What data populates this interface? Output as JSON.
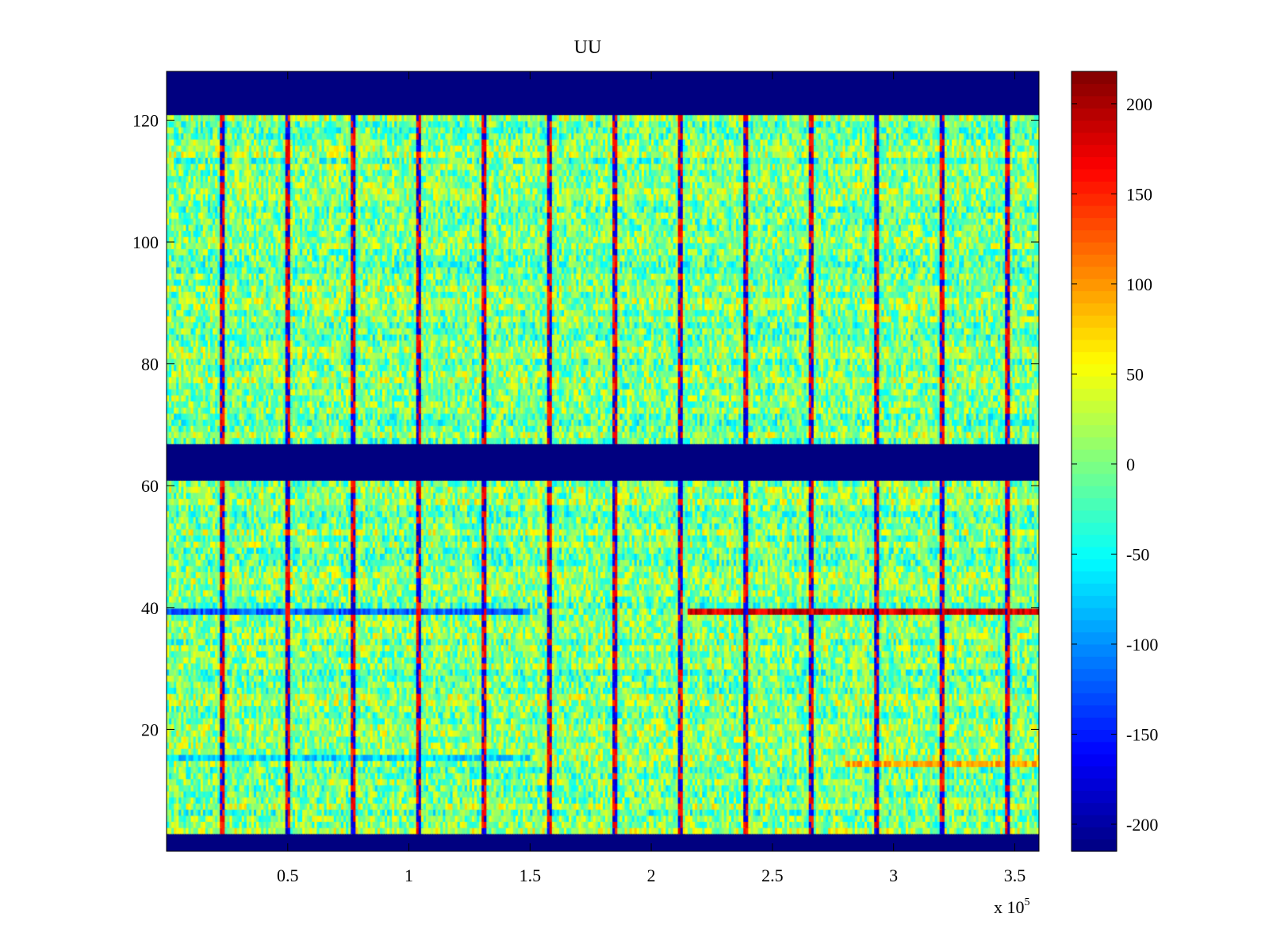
{
  "chart_data": {
    "type": "heatmap",
    "title": "UU",
    "colormap": "jet",
    "xlim": [
      0,
      360000
    ],
    "ylim": [
      0,
      128
    ],
    "x_ticks": [
      {
        "value": 50000,
        "label": "0.5"
      },
      {
        "value": 100000,
        "label": "1"
      },
      {
        "value": 150000,
        "label": "1.5"
      },
      {
        "value": 200000,
        "label": "2"
      },
      {
        "value": 250000,
        "label": "2.5"
      },
      {
        "value": 300000,
        "label": "3"
      },
      {
        "value": 350000,
        "label": "3.5"
      }
    ],
    "x_exponent": {
      "base": "x 10",
      "power": "5"
    },
    "y_ticks": [
      {
        "value": 20,
        "label": "20"
      },
      {
        "value": 40,
        "label": "40"
      },
      {
        "value": 60,
        "label": "60"
      },
      {
        "value": 80,
        "label": "80"
      },
      {
        "value": 100,
        "label": "100"
      },
      {
        "value": 120,
        "label": "120"
      }
    ],
    "colorbar": {
      "clim": [
        -215,
        218
      ],
      "ticks": [
        {
          "value": 200,
          "label": "200"
        },
        {
          "value": 150,
          "label": "150"
        },
        {
          "value": 100,
          "label": "100"
        },
        {
          "value": 50,
          "label": "50"
        },
        {
          "value": 0,
          "label": "0"
        },
        {
          "value": -50,
          "label": "-50"
        },
        {
          "value": -100,
          "label": "-100"
        },
        {
          "value": -150,
          "label": "-150"
        },
        {
          "value": -200,
          "label": "-200"
        }
      ]
    },
    "masked_rows": [
      {
        "from": 0,
        "to": 3,
        "value": -215
      },
      {
        "from": 61,
        "to": 67,
        "value": -215
      },
      {
        "from": 121,
        "to": 128,
        "value": -215
      }
    ],
    "vertical_spike_x": [
      23000,
      50000,
      77000,
      104000,
      131000,
      158000,
      185000,
      212000,
      239000,
      266000,
      293000,
      320000,
      347000
    ],
    "anomalies": [
      {
        "row": 39,
        "x_from": 0,
        "x_to": 150000,
        "value": -120
      },
      {
        "row": 39,
        "x_from": 215000,
        "x_to": 360000,
        "value": 180
      },
      {
        "row": 15,
        "x_from": 0,
        "x_to": 150000,
        "value": -70
      },
      {
        "row": 14,
        "x_from": 280000,
        "x_to": 360000,
        "value": 90
      }
    ],
    "background_range": [
      -60,
      60
    ]
  }
}
